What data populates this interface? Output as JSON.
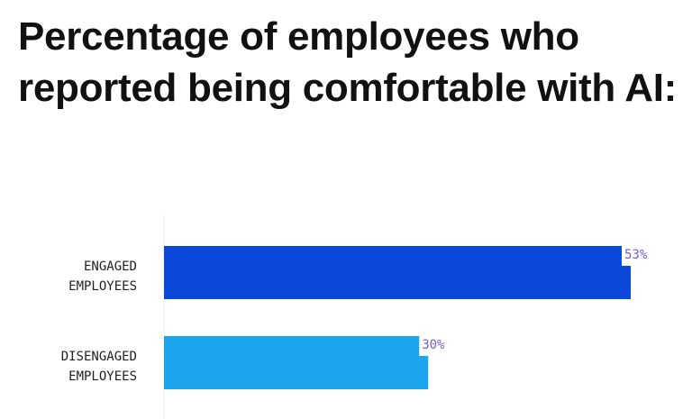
{
  "chart_data": {
    "type": "bar",
    "orientation": "horizontal",
    "title": "Percentage of employees who reported being comfortable with AI:",
    "categories": [
      [
        "ENGAGED",
        "EMPLOYEES"
      ],
      [
        "DISENGAGED",
        "EMPLOYEES"
      ]
    ],
    "values": [
      53,
      30
    ],
    "value_labels": [
      "53%",
      "30%"
    ],
    "unit": "%",
    "xlim": [
      0,
      55
    ],
    "grid": false,
    "colors": [
      "#0b47d9",
      "#1aa5ee"
    ],
    "label_color": "#7a5ad4"
  }
}
